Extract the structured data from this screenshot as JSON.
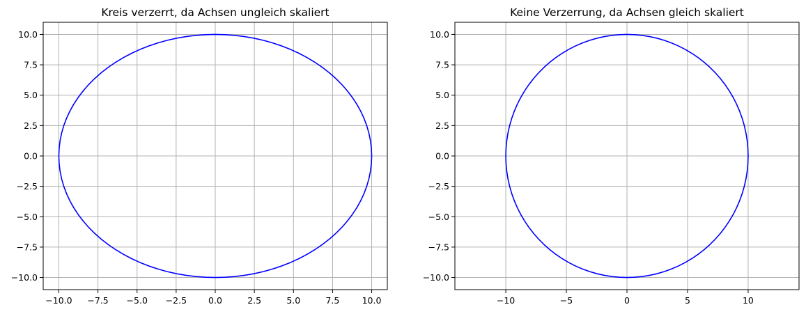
{
  "chart_data": [
    {
      "type": "line",
      "title": "Kreis verzerrt, da Achsen ungleich skaliert",
      "xlabel": "",
      "ylabel": "",
      "xlim": [
        -11,
        11
      ],
      "ylim": [
        -11,
        11
      ],
      "grid": true,
      "aspect": "auto",
      "xticks": [
        -10.0,
        -7.5,
        -5.0,
        -2.5,
        0.0,
        2.5,
        5.0,
        7.5,
        10.0
      ],
      "xtick_labels": [
        "−10.0",
        "−7.5",
        "−5.0",
        "−2.5",
        "0.0",
        "2.5",
        "5.0",
        "7.5",
        "10.0"
      ],
      "yticks": [
        10.0,
        7.5,
        5.0,
        2.5,
        0.0,
        -2.5,
        -5.0,
        -7.5,
        -10.0
      ],
      "ytick_labels": [
        "10.0",
        "7.5",
        "5.0",
        "2.5",
        "0.0",
        "−2.5",
        "−5.0",
        "−7.5",
        "−10.0"
      ],
      "series": [
        {
          "shape": "circle",
          "center": [
            0,
            0
          ],
          "radius": 10,
          "color": "#0000ff"
        }
      ]
    },
    {
      "type": "line",
      "title": "Keine Verzerrung, da Achsen gleich skaliert",
      "xlabel": "",
      "ylabel": "",
      "xlim": [
        -14.2,
        14.2
      ],
      "ylim": [
        -11,
        11
      ],
      "grid": true,
      "aspect": "equal",
      "xticks": [
        -10,
        -5,
        0,
        5,
        10
      ],
      "xtick_labels": [
        "−10",
        "−5",
        "0",
        "5",
        "10"
      ],
      "yticks": [
        10.0,
        7.5,
        5.0,
        2.5,
        0.0,
        -2.5,
        -5.0,
        -7.5,
        -10.0
      ],
      "ytick_labels": [
        "10.0",
        "7.5",
        "5.0",
        "2.5",
        "0.0",
        "−2.5",
        "−5.0",
        "−7.5",
        "−10.0"
      ],
      "series": [
        {
          "shape": "circle",
          "center": [
            0,
            0
          ],
          "radius": 10,
          "color": "#0000ff"
        }
      ]
    }
  ]
}
